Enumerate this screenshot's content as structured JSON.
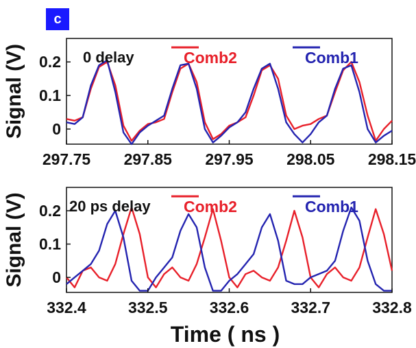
{
  "panel_label": "c",
  "chart_data": [
    {
      "type": "line",
      "annotation": "0 delay",
      "ylabel": "Signal (V)",
      "xlabel": "",
      "xlim": [
        297.75,
        298.15
      ],
      "ylim": [
        -0.045,
        0.27
      ],
      "xticks": [
        "297.75",
        "297.85",
        "297.95",
        "298.05",
        "298.15"
      ],
      "xtick_values": [
        297.75,
        297.85,
        297.95,
        298.05,
        298.15
      ],
      "yticks": [
        "0.2",
        "0.1",
        "0"
      ],
      "ytick_values": [
        0.2,
        0.1,
        0
      ],
      "legend_position": "top-right",
      "series": [
        {
          "name": "Comb2",
          "color": "#e8202a",
          "x": [
            297.75,
            297.76,
            297.77,
            297.78,
            297.79,
            297.8,
            297.81,
            297.82,
            297.83,
            297.84,
            297.85,
            297.86,
            297.87,
            297.88,
            297.89,
            297.9,
            297.91,
            297.92,
            297.93,
            297.94,
            297.95,
            297.96,
            297.97,
            297.98,
            297.99,
            298.0,
            298.01,
            298.02,
            298.03,
            298.04,
            298.05,
            298.06,
            298.07,
            298.08,
            298.09,
            298.1,
            298.11,
            298.12,
            298.13,
            298.14,
            298.15
          ],
          "values": [
            0.03,
            0.025,
            0.035,
            0.12,
            0.185,
            0.2,
            0.13,
            0.01,
            -0.035,
            -0.005,
            0.015,
            0.02,
            0.03,
            0.11,
            0.18,
            0.195,
            0.14,
            0.02,
            -0.03,
            -0.015,
            0.01,
            0.02,
            0.035,
            0.1,
            0.175,
            0.19,
            0.15,
            0.04,
            0.0,
            0.01,
            0.015,
            0.03,
            0.04,
            0.11,
            0.175,
            0.2,
            0.14,
            0.04,
            -0.035,
            0.0,
            0.025
          ]
        },
        {
          "name": "Comb1",
          "color": "#2424b0",
          "x": [
            297.75,
            297.76,
            297.77,
            297.78,
            297.79,
            297.8,
            297.81,
            297.82,
            297.83,
            297.84,
            297.85,
            297.86,
            297.87,
            297.88,
            297.89,
            297.9,
            297.91,
            297.92,
            297.93,
            297.94,
            297.95,
            297.96,
            297.97,
            297.98,
            297.99,
            298.0,
            298.01,
            298.02,
            298.03,
            298.04,
            298.05,
            298.06,
            298.07,
            298.08,
            298.09,
            298.1,
            298.11,
            298.12,
            298.13,
            298.14,
            298.15
          ],
          "values": [
            0.02,
            0.015,
            0.035,
            0.13,
            0.19,
            0.205,
            0.11,
            -0.01,
            -0.045,
            -0.01,
            0.01,
            0.025,
            0.04,
            0.12,
            0.19,
            0.195,
            0.12,
            0.0,
            -0.04,
            -0.02,
            0.005,
            0.02,
            0.05,
            0.12,
            0.18,
            0.195,
            0.12,
            0.02,
            -0.015,
            -0.04,
            -0.015,
            0.02,
            0.04,
            0.12,
            0.18,
            0.19,
            0.11,
            0.0,
            -0.04,
            -0.02,
            -0.005
          ]
        }
      ]
    },
    {
      "type": "line",
      "annotation": "20 ps delay",
      "ylabel": "Signal (V)",
      "xlabel": "Time ( ns )",
      "xlim": [
        332.4,
        332.8
      ],
      "ylim": [
        -0.045,
        0.27
      ],
      "xticks": [
        "332.4",
        "332.5",
        "332.6",
        "332.7",
        "332.8"
      ],
      "xtick_values": [
        332.4,
        332.5,
        332.6,
        332.7,
        332.8
      ],
      "yticks": [
        "0.2",
        "0.1",
        "0"
      ],
      "ytick_values": [
        0.2,
        0.1,
        0
      ],
      "legend_position": "top-right",
      "series": [
        {
          "name": "Comb2",
          "color": "#e8202a",
          "x": [
            332.4,
            332.41,
            332.42,
            332.43,
            332.44,
            332.45,
            332.46,
            332.47,
            332.48,
            332.49,
            332.5,
            332.51,
            332.52,
            332.53,
            332.54,
            332.55,
            332.56,
            332.57,
            332.58,
            332.59,
            332.6,
            332.61,
            332.62,
            332.63,
            332.64,
            332.65,
            332.66,
            332.67,
            332.68,
            332.69,
            332.7,
            332.71,
            332.72,
            332.73,
            332.74,
            332.75,
            332.76,
            332.77,
            332.78,
            332.79,
            332.8
          ],
          "values": [
            0.0,
            -0.03,
            0.02,
            0.03,
            0.0,
            -0.01,
            0.04,
            0.13,
            0.21,
            0.13,
            0.0,
            -0.03,
            0.01,
            0.03,
            0.0,
            -0.01,
            0.04,
            0.12,
            0.205,
            0.11,
            0.0,
            -0.03,
            0.01,
            0.02,
            0.0,
            -0.01,
            0.03,
            0.11,
            0.2,
            0.12,
            0.0,
            -0.03,
            0.01,
            0.03,
            0.0,
            -0.01,
            0.03,
            0.12,
            0.205,
            0.13,
            0.02
          ]
        },
        {
          "name": "Comb1",
          "color": "#2424b0",
          "x": [
            332.4,
            332.41,
            332.42,
            332.43,
            332.44,
            332.45,
            332.46,
            332.47,
            332.48,
            332.49,
            332.5,
            332.51,
            332.52,
            332.53,
            332.54,
            332.55,
            332.56,
            332.57,
            332.58,
            332.59,
            332.6,
            332.61,
            332.62,
            332.63,
            332.64,
            332.65,
            332.66,
            332.67,
            332.68,
            332.69,
            332.7,
            332.71,
            332.72,
            332.73,
            332.74,
            332.75,
            332.76,
            332.77,
            332.78,
            332.79,
            332.8
          ],
          "values": [
            -0.02,
            0.0,
            0.02,
            0.04,
            0.08,
            0.16,
            0.2,
            0.12,
            -0.01,
            -0.04,
            -0.04,
            0.0,
            0.03,
            0.06,
            0.14,
            0.19,
            0.15,
            0.03,
            -0.04,
            -0.04,
            -0.01,
            0.01,
            0.04,
            0.07,
            0.15,
            0.19,
            0.11,
            -0.01,
            -0.02,
            -0.02,
            0.0,
            0.01,
            0.02,
            0.05,
            0.14,
            0.21,
            0.17,
            0.05,
            -0.02,
            -0.04,
            -0.04
          ]
        }
      ]
    }
  ]
}
